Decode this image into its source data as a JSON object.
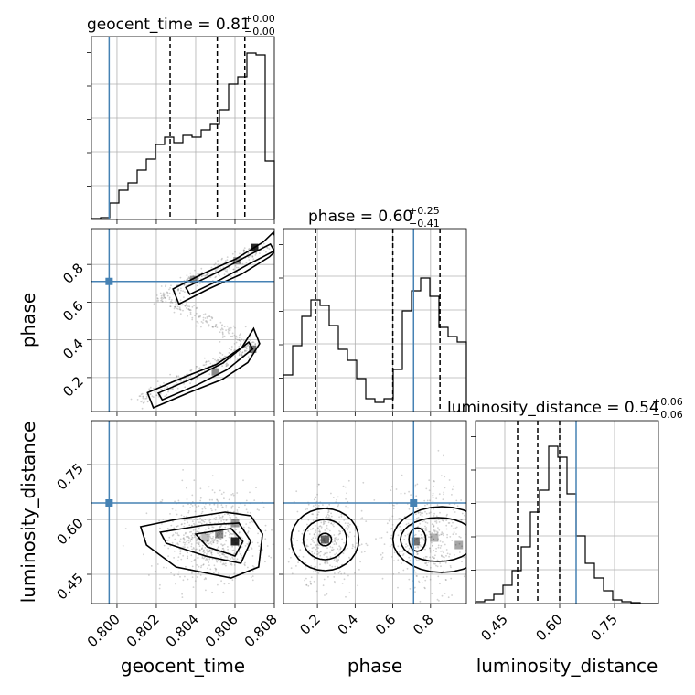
{
  "titles": {
    "geocent_time": {
      "label": "geocent_time = 0.81",
      "sup": "+0.00",
      "sub": "−0.00"
    },
    "phase": {
      "label": "phase = 0.60",
      "sup": "+0.25",
      "sub": "−0.41"
    },
    "luminosity_distance": {
      "label": "luminosity_distance = 0.54",
      "sup": "+0.06",
      "sub": "−0.06"
    }
  },
  "axis_labels": {
    "geocent_time": "geocent_time",
    "phase": "phase",
    "luminosity_distance": "luminosity_distance"
  },
  "colors": {
    "truth": "#4682b4",
    "hist": "#000000",
    "density": "#000000",
    "grid": "#b0b0b0"
  },
  "chart_data": {
    "type": "corner",
    "parameters": [
      "geocent_time",
      "phase",
      "luminosity_distance"
    ],
    "truths": {
      "geocent_time": 0.7996,
      "phase": 0.71,
      "luminosity_distance": 0.645
    },
    "ranges": {
      "geocent_time": [
        0.7987,
        0.808
      ],
      "phase": [
        0.02,
        0.99
      ],
      "luminosity_distance": [
        0.37,
        0.87
      ]
    },
    "ticks": {
      "geocent_time": [
        "0.800",
        "0.802",
        "0.804",
        "0.806",
        "0.808"
      ],
      "phase": [
        "0.2",
        "0.4",
        "0.6",
        "0.8"
      ],
      "luminosity_distance": [
        "0.45",
        "0.60",
        "0.75"
      ]
    },
    "quantiles": {
      "geocent_time": [
        0.8027,
        0.8051,
        0.8065
      ],
      "phase": [
        0.19,
        0.6,
        0.85
      ],
      "luminosity_distance": [
        0.485,
        0.54,
        0.6
      ]
    },
    "histograms": {
      "geocent_time": [
        0.005,
        0.01,
        0.09,
        0.16,
        0.2,
        0.27,
        0.33,
        0.41,
        0.45,
        0.42,
        0.46,
        0.45,
        0.49,
        0.52,
        0.6,
        0.74,
        0.78,
        0.91,
        0.9,
        0.32
      ],
      "phase": [
        0.2,
        0.36,
        0.52,
        0.61,
        0.58,
        0.47,
        0.34,
        0.28,
        0.18,
        0.07,
        0.05,
        0.07,
        0.23,
        0.55,
        0.66,
        0.73,
        0.63,
        0.46,
        0.41,
        0.38
      ],
      "luminosity_distance": [
        0.01,
        0.02,
        0.05,
        0.1,
        0.18,
        0.31,
        0.5,
        0.62,
        0.86,
        0.8,
        0.6,
        0.37,
        0.22,
        0.14,
        0.07,
        0.02,
        0.01,
        0.005,
        0.0,
        0.0
      ]
    },
    "grid": true
  }
}
